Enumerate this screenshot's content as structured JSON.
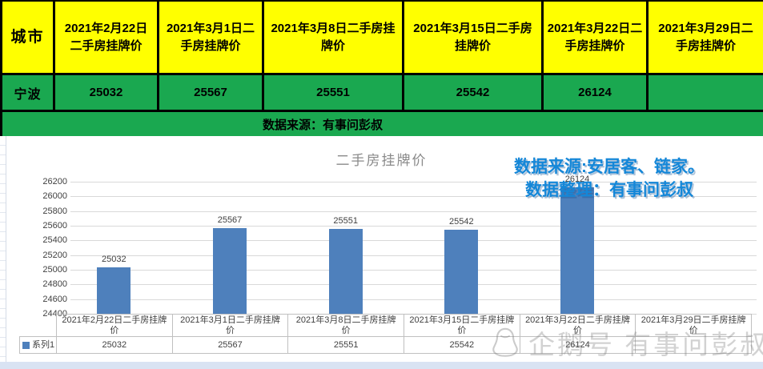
{
  "table": {
    "city_header": "城市",
    "date_headers": [
      "2021年2月22日\n二手房挂牌价",
      "2021年3月1日二\n手房挂牌价",
      "2021年3月8日二手房挂\n牌价",
      "2021年3月15日二手房\n挂牌价",
      "2021年3月22日二\n手房挂牌价",
      "2021年3月29日二\n手房挂牌价"
    ],
    "row": {
      "city": "宁波",
      "values": [
        "25032",
        "25567",
        "25551",
        "25542",
        "26124",
        ""
      ]
    },
    "source_banner": "数据来源：有事问彭叔"
  },
  "chart": {
    "annotation_line1": "数据来源:安居客、链家。",
    "annotation_line2": "数据整理：有事问彭叔",
    "watermark": "企鹅号 有事问彭叔",
    "watermark_icon": "penguin-outline-icon"
  },
  "chart_data": {
    "type": "bar",
    "title": "二手房挂牌价",
    "categories": [
      "2021年2月22日二手房挂牌\n价",
      "2021年3月1日二手房挂牌\n价",
      "2021年3月8日二手房挂牌\n价",
      "2021年3月15日二手房挂牌\n价",
      "2021年3月22日二手房挂牌\n价",
      "2021年3月29日二手房挂牌\n价"
    ],
    "values": [
      25032,
      25567,
      25551,
      25542,
      26124,
      null
    ],
    "value_labels": [
      "25032",
      "25567",
      "25551",
      "25542",
      "26124",
      ""
    ],
    "series_name": "系列1",
    "ylim": [
      24400,
      26200
    ],
    "ytick_step": 200,
    "grid": true,
    "legend_position": "bottom-left-table",
    "bar_color": "#4e80bc"
  },
  "colors": {
    "header_yellow": "#ffff00",
    "cell_green": "#1aa850",
    "bar_blue": "#4e80bc",
    "annotation_blue": "#1487d8",
    "grid_gray": "#d9d9d9",
    "watermark_gray": "#7d7d7d"
  }
}
